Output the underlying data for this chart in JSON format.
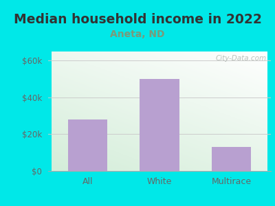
{
  "title": "Median household income in 2022",
  "subtitle": "Aneta, ND",
  "categories": [
    "All",
    "White",
    "Multirace"
  ],
  "values": [
    28000,
    50000,
    13000
  ],
  "bar_color": "#b8a0d0",
  "background_color": "#00e8e8",
  "yticks": [
    0,
    20000,
    40000,
    60000
  ],
  "ytick_labels": [
    "$0",
    "$20k",
    "$40k",
    "$60k"
  ],
  "ylim": [
    0,
    65000
  ],
  "title_fontsize": 13.5,
  "subtitle_fontsize": 10,
  "subtitle_color": "#7a9a7a",
  "tick_color": "#666666",
  "watermark": "City-Data.com",
  "title_color": "#333333"
}
